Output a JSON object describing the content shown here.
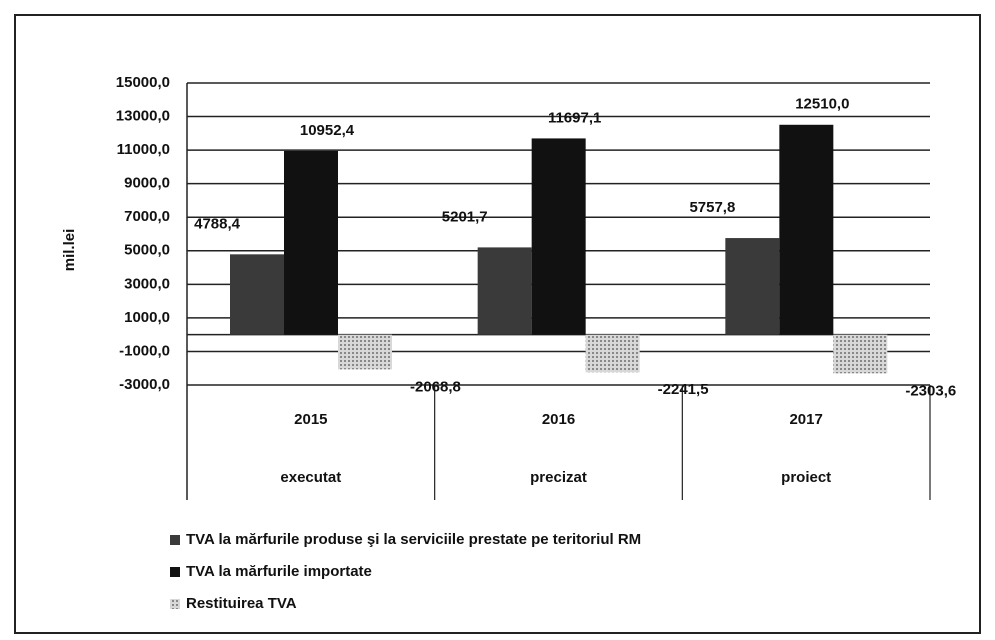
{
  "chart_data": {
    "type": "bar",
    "y_label": "mil.lei",
    "categories": [
      "2015",
      "2016",
      "2017"
    ],
    "category_groups": [
      "executat",
      "precizat",
      "proiect"
    ],
    "series": [
      {
        "name": "TVA la mărfurile produse şi la serviciile prestate pe teritoriul RM",
        "color": "#3a3a3a",
        "values": [
          4788.4,
          5201.7,
          5757.8
        ],
        "value_labels": [
          "4788,4",
          "5201,7",
          "5757,8"
        ]
      },
      {
        "name": "TVA la mărfurile importate",
        "color": "#111111",
        "values": [
          10952.4,
          11697.1,
          12510.0
        ],
        "value_labels": [
          "10952,4",
          "11697,1",
          "12510,0"
        ]
      },
      {
        "name": "Restituirea TVA",
        "color": "#c8c8c8",
        "values": [
          -2068.8,
          -2241.5,
          -2303.6
        ],
        "value_labels": [
          "-2068,8",
          "-2241,5",
          "-2303,6"
        ]
      }
    ],
    "ylim": [
      -3000,
      15000
    ],
    "yticks": [
      {
        "value": -3000,
        "label": "-3000,0"
      },
      {
        "value": -1000,
        "label": "-1000,0"
      },
      {
        "value": 1000,
        "label": "1000,0"
      },
      {
        "value": 3000,
        "label": "3000,0"
      },
      {
        "value": 5000,
        "label": "5000,0"
      },
      {
        "value": 7000,
        "label": "7000,0"
      },
      {
        "value": 9000,
        "label": "9000,0"
      },
      {
        "value": 11000,
        "label": "11000,0"
      },
      {
        "value": 13000,
        "label": "13000,0"
      },
      {
        "value": 15000,
        "label": "15000,0"
      }
    ],
    "grid": true,
    "legend": "bottom"
  }
}
